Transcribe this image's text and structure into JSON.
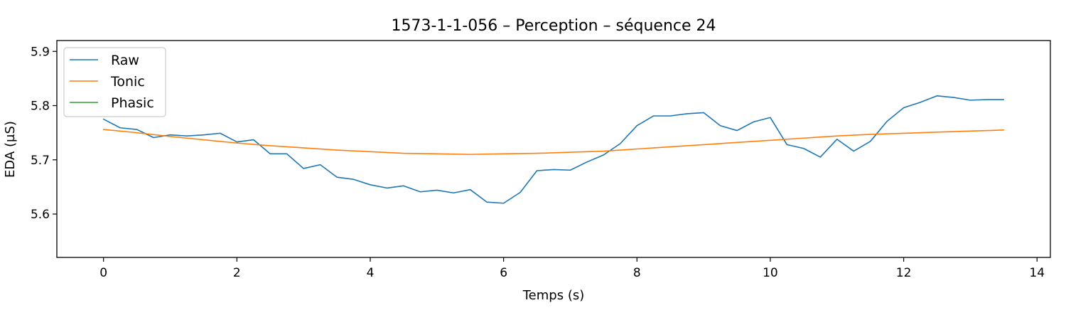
{
  "chart_data": {
    "type": "line",
    "title": "1573-1-1-056 – Perception – séquence 24",
    "xlabel": "Temps (s)",
    "ylabel": "EDA (µS)",
    "xlim": [
      -0.7,
      14.2
    ],
    "ylim": [
      5.52,
      5.92
    ],
    "xticks": [
      0,
      2,
      4,
      6,
      8,
      10,
      12,
      14
    ],
    "xtick_labels": [
      "0",
      "2",
      "4",
      "6",
      "8",
      "10",
      "12",
      "14"
    ],
    "yticks": [
      5.6,
      5.7,
      5.8,
      5.9
    ],
    "ytick_labels": [
      "5.6",
      "5.7",
      "5.8",
      "5.9"
    ],
    "grid": false,
    "legend": {
      "position": "top-left"
    },
    "series": [
      {
        "name": "Raw",
        "color": "#1f77b4",
        "x": [
          0,
          0.25,
          0.5,
          0.75,
          1.0,
          1.25,
          1.5,
          1.75,
          2.0,
          2.25,
          2.5,
          2.75,
          3.0,
          3.25,
          3.5,
          3.75,
          4.0,
          4.25,
          4.5,
          4.75,
          5.0,
          5.25,
          5.5,
          5.75,
          6.0,
          6.25,
          6.5,
          6.75,
          7.0,
          7.25,
          7.5,
          7.75,
          8.0,
          8.25,
          8.5,
          8.75,
          9.0,
          9.25,
          9.5,
          9.75,
          10.0,
          10.25,
          10.5,
          10.75,
          11.0,
          11.25,
          11.5,
          11.75,
          12.0,
          12.25,
          12.5,
          12.75,
          13.0,
          13.25,
          13.5
        ],
        "y": [
          5.775,
          5.759,
          5.756,
          5.741,
          5.746,
          5.744,
          5.746,
          5.749,
          5.733,
          5.737,
          5.711,
          5.711,
          5.684,
          5.691,
          5.668,
          5.664,
          5.654,
          5.648,
          5.652,
          5.641,
          5.644,
          5.639,
          5.645,
          5.622,
          5.62,
          5.64,
          5.68,
          5.682,
          5.681,
          5.696,
          5.709,
          5.73,
          5.763,
          5.781,
          5.781,
          5.785,
          5.787,
          5.763,
          5.754,
          5.77,
          5.778,
          5.728,
          5.721,
          5.705,
          5.738,
          5.716,
          5.734,
          5.771,
          5.796,
          5.806,
          5.818,
          5.815,
          5.81,
          5.811,
          5.811
        ]
      },
      {
        "name": "Tonic",
        "color": "#ff7f0e",
        "x": [
          0,
          0.5,
          1.0,
          1.5,
          2.0,
          2.5,
          3.0,
          3.5,
          4.0,
          4.5,
          5.0,
          5.5,
          6.0,
          6.5,
          7.0,
          7.5,
          8.0,
          8.5,
          9.0,
          9.5,
          10.0,
          10.5,
          11.0,
          11.5,
          12.0,
          12.5,
          13.0,
          13.5
        ],
        "y": [
          5.756,
          5.75,
          5.743,
          5.737,
          5.731,
          5.726,
          5.722,
          5.718,
          5.715,
          5.712,
          5.711,
          5.71,
          5.711,
          5.712,
          5.714,
          5.716,
          5.72,
          5.724,
          5.728,
          5.732,
          5.736,
          5.74,
          5.744,
          5.747,
          5.749,
          5.751,
          5.753,
          5.755
        ]
      },
      {
        "name": "Phasic",
        "color": "#2ca02c",
        "x": [],
        "y": []
      }
    ]
  }
}
